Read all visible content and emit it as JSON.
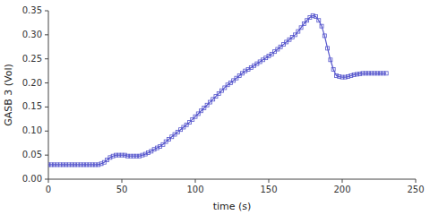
{
  "chart_data": {
    "type": "line",
    "xlabel": "time (s)",
    "ylabel": "GASB 3 (Vol)",
    "color": "#5555cc",
    "marker": "square",
    "grid": false,
    "xlim": [
      0,
      250
    ],
    "ylim": [
      0,
      0.35
    ],
    "xticks": [
      0,
      50,
      100,
      150,
      200,
      250
    ],
    "yticks": [
      {
        "value": 0,
        "label": "0.00"
      },
      0.05,
      {
        "value": 0.1,
        "label": "0.10"
      },
      0.15,
      {
        "value": 0.2,
        "label": "0.20"
      },
      0.25,
      {
        "value": 0.3,
        "label": "0.30"
      },
      0.35
    ],
    "x": [
      0,
      2,
      4,
      6,
      8,
      10,
      12,
      14,
      16,
      18,
      20,
      22,
      24,
      26,
      28,
      30,
      32,
      34,
      36,
      38,
      40,
      42,
      44,
      46,
      48,
      50,
      52,
      54,
      56,
      58,
      60,
      62,
      64,
      66,
      68,
      70,
      72,
      74,
      76,
      78,
      80,
      82,
      84,
      86,
      88,
      90,
      92,
      94,
      96,
      98,
      100,
      102,
      104,
      106,
      108,
      110,
      112,
      114,
      116,
      118,
      120,
      122,
      124,
      126,
      128,
      130,
      132,
      134,
      136,
      138,
      140,
      142,
      144,
      146,
      148,
      150,
      152,
      154,
      156,
      158,
      160,
      162,
      164,
      166,
      168,
      170,
      172,
      174,
      176,
      178,
      180,
      182,
      184,
      186,
      188,
      190,
      192,
      194,
      196,
      198,
      200,
      202,
      204,
      206,
      208,
      210,
      212,
      214,
      216,
      218,
      220,
      222,
      224,
      226,
      228,
      230
    ],
    "values": [
      0.03,
      0.03,
      0.03,
      0.03,
      0.03,
      0.03,
      0.03,
      0.03,
      0.03,
      0.03,
      0.03,
      0.03,
      0.03,
      0.03,
      0.03,
      0.03,
      0.03,
      0.03,
      0.032,
      0.035,
      0.04,
      0.045,
      0.048,
      0.05,
      0.05,
      0.05,
      0.05,
      0.048,
      0.048,
      0.048,
      0.048,
      0.048,
      0.05,
      0.052,
      0.055,
      0.058,
      0.062,
      0.065,
      0.068,
      0.072,
      0.078,
      0.083,
      0.088,
      0.093,
      0.098,
      0.103,
      0.108,
      0.113,
      0.118,
      0.124,
      0.13,
      0.136,
      0.142,
      0.148,
      0.154,
      0.16,
      0.166,
      0.172,
      0.178,
      0.184,
      0.19,
      0.196,
      0.2,
      0.205,
      0.21,
      0.215,
      0.22,
      0.225,
      0.228,
      0.232,
      0.236,
      0.24,
      0.244,
      0.248,
      0.252,
      0.256,
      0.26,
      0.265,
      0.27,
      0.275,
      0.28,
      0.285,
      0.29,
      0.295,
      0.3,
      0.307,
      0.315,
      0.323,
      0.33,
      0.336,
      0.34,
      0.338,
      0.33,
      0.318,
      0.298,
      0.272,
      0.248,
      0.228,
      0.215,
      0.213,
      0.212,
      0.212,
      0.213,
      0.215,
      0.217,
      0.218,
      0.219,
      0.22,
      0.22,
      0.22,
      0.22,
      0.22,
      0.22,
      0.22,
      0.22,
      0.22
    ]
  }
}
